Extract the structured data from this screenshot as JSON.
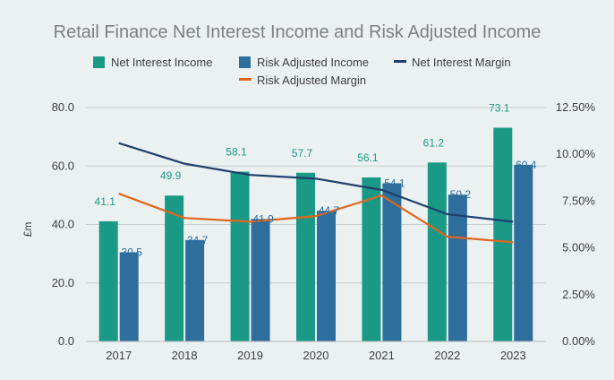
{
  "chart_data": {
    "type": "bar",
    "title": "Retail Finance Net Interest Income and Risk Adjusted Income",
    "categories": [
      "2017",
      "2018",
      "2019",
      "2020",
      "2021",
      "2022",
      "2023"
    ],
    "series": [
      {
        "name": "Net Interest Income",
        "kind": "bar",
        "axis": "left",
        "color": "#1a9a86",
        "values": [
          41.1,
          49.9,
          58.1,
          57.7,
          56.1,
          61.2,
          73.1
        ]
      },
      {
        "name": "Risk Adjusted Income",
        "kind": "bar",
        "axis": "left",
        "color": "#2e6e9c",
        "values": [
          30.5,
          34.7,
          41.9,
          44.7,
          54.1,
          50.2,
          60.4
        ]
      },
      {
        "name": "Net Interest Margin",
        "kind": "line",
        "axis": "right",
        "color": "#1f3f6e",
        "values": [
          10.6,
          9.5,
          8.9,
          8.7,
          8.1,
          6.8,
          6.4
        ]
      },
      {
        "name": "Risk Adjusted Margin",
        "kind": "line",
        "axis": "right",
        "color": "#e0651c",
        "values": [
          7.9,
          6.6,
          6.4,
          6.7,
          7.8,
          5.6,
          5.3
        ]
      }
    ],
    "data_labels": {
      "Net Interest Income": [
        "41.1",
        "49.9",
        "58.1",
        "57.7",
        "56.1",
        "61.2",
        "73.1"
      ],
      "Risk Adjusted Income": [
        "30.5",
        "34.7",
        "41.9",
        "44.7",
        "54.1",
        "50.2",
        "60.4"
      ]
    },
    "ylabel": "£m",
    "ylim": [
      0,
      80
    ],
    "yticks": [
      "0.0",
      "20.0",
      "40.0",
      "60.0",
      "80.0"
    ],
    "y2lim": [
      0,
      12.5
    ],
    "y2ticks": [
      "0.00%",
      "2.50%",
      "5.00%",
      "7.50%",
      "10.00%",
      "12.50%"
    ],
    "grid": true,
    "legend": "top"
  }
}
